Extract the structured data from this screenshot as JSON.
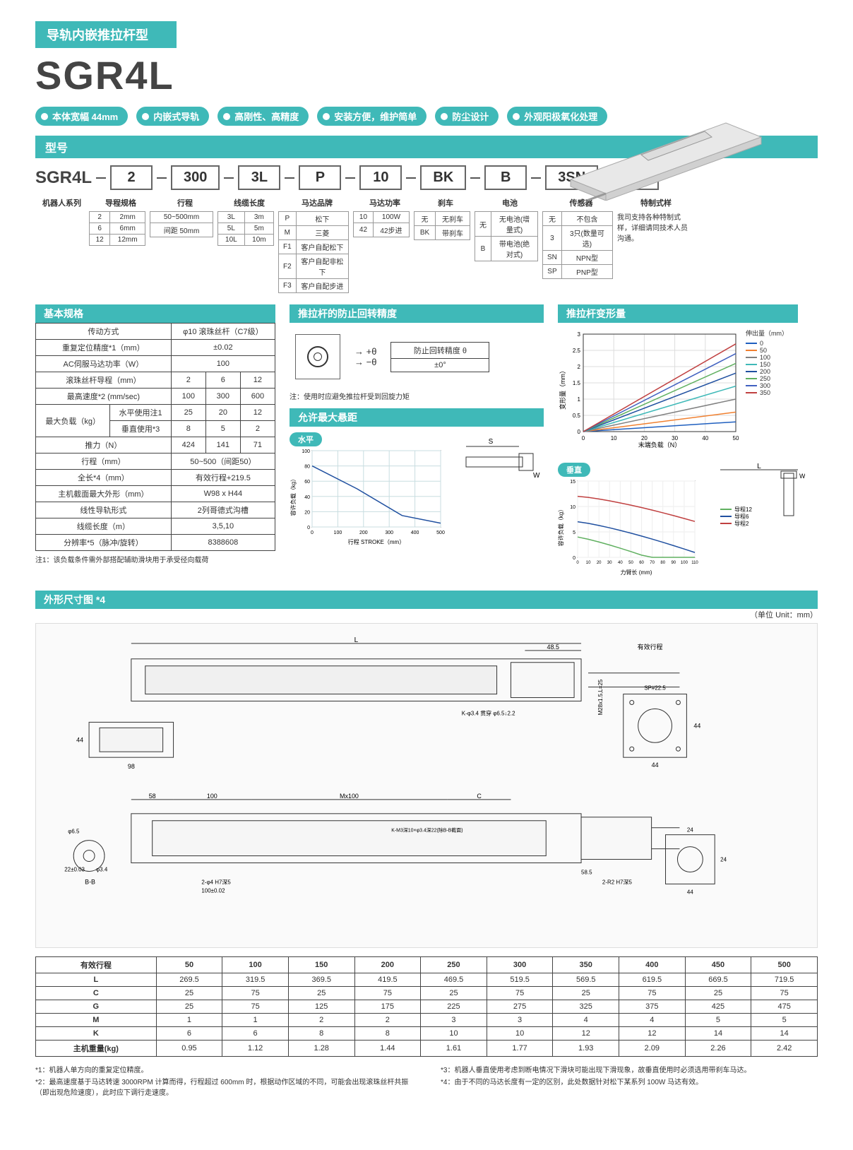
{
  "header": {
    "title": "导轨内嵌推拉杆型",
    "model": "SGR4L",
    "pills": [
      "本体宽幅 44mm",
      "内嵌式导轨",
      "高刚性、高精度",
      "安装方便，维护简单",
      "防尘设计",
      "外观阳极氧化处理"
    ]
  },
  "modelSelector": {
    "header": "型号",
    "lead": "SGR4L",
    "boxes": [
      "2",
      "300",
      "3L",
      "P",
      "10",
      "BK",
      "B",
      "3SN",
      ""
    ],
    "labels": [
      "机器人系列",
      "导程规格",
      "行程",
      "线缆长度",
      "马达品牌",
      "马达功率",
      "刹车",
      "电池",
      "传感器",
      "特制式样"
    ],
    "labelWidths": [
      75,
      80,
      90,
      80,
      100,
      80,
      80,
      90,
      100,
      100
    ],
    "options": {
      "lead": [
        [
          "2",
          "2mm"
        ],
        [
          "6",
          "6mm"
        ],
        [
          "12",
          "12mm"
        ]
      ],
      "stroke": [
        [
          "50~500mm"
        ],
        [
          "间距 50mm"
        ]
      ],
      "cable": [
        [
          "3L",
          "3m"
        ],
        [
          "5L",
          "5m"
        ],
        [
          "10L",
          "10m"
        ]
      ],
      "brand": [
        [
          "P",
          "松下"
        ],
        [
          "M",
          "三菱"
        ],
        [
          "F1",
          "客户自配松下"
        ],
        [
          "F2",
          "客户自配非松下"
        ],
        [
          "F3",
          "客户自配步进"
        ]
      ],
      "power": [
        [
          "10",
          "100W"
        ],
        [
          "42",
          "42步进"
        ]
      ],
      "brake": [
        [
          "无",
          "无刹车"
        ],
        [
          "BK",
          "带刹车"
        ]
      ],
      "battery": [
        [
          "无",
          "无电池(增量式)"
        ],
        [
          "B",
          "带电池(绝对式)"
        ]
      ],
      "sensor": [
        [
          "无",
          "不包含"
        ],
        [
          "3",
          "3只(数量可选)"
        ],
        [
          "SN",
          "NPN型"
        ],
        [
          "SP",
          "PNP型"
        ]
      ],
      "custom": "我司支持各种特制式样，详细请同技术人员沟通。"
    }
  },
  "specs": {
    "header": "基本规格",
    "rows": [
      {
        "label": "传动方式",
        "val": "φ10 滚珠丝杆（C7级）",
        "span": 3
      },
      {
        "label": "重复定位精度*1（mm）",
        "val": "±0.02",
        "span": 3
      },
      {
        "label": "AC伺服马达功率（W）",
        "val": "100",
        "span": 3
      },
      {
        "label": "滚珠丝杆导程（mm）",
        "vals": [
          "2",
          "6",
          "12"
        ]
      },
      {
        "label": "最高速度*2 (mm/sec)",
        "vals": [
          "100",
          "300",
          "600"
        ]
      },
      {
        "label": "最大负载（kg）",
        "sub1": "水平使用注1",
        "vals1": [
          "25",
          "20",
          "12"
        ],
        "sub2": "垂直使用*3",
        "vals2": [
          "8",
          "5",
          "2"
        ]
      },
      {
        "label": "推力（N）",
        "vals": [
          "424",
          "141",
          "71"
        ]
      },
      {
        "label": "行程（mm）",
        "val": "50~500（间距50）",
        "span": 3
      },
      {
        "label": "全长*4（mm）",
        "val": "有效行程+219.5",
        "span": 3
      },
      {
        "label": "主机截面最大外形（mm）",
        "val": "W98 x H44",
        "span": 3
      },
      {
        "label": "线性导轨形式",
        "val": "2列哥德式沟槽",
        "span": 3
      },
      {
        "label": "线缆长度（m）",
        "val": "3,5,10",
        "span": 3
      },
      {
        "label": "分辨率*5（脉冲/旋转）",
        "val": "8388608",
        "span": 3
      }
    ],
    "note1": "注1：该负载条件需外部搭配辅助滑块用于承受径向载荷"
  },
  "rotation": {
    "header": "推拉杆的防止回转精度",
    "plusTheta": "+θ",
    "minusTheta": "−θ",
    "label1": "防止回转精度 θ",
    "value": "±0°",
    "note": "注：使用时应避免推拉杆受到回旋力矩"
  },
  "deform": {
    "header": "推拉杆变形量",
    "ylabel": "变形量（mm）",
    "xlabel": "末端负载（N）",
    "legendTitle": "伸出量（mm）",
    "ylim": [
      0,
      3
    ],
    "ytick": 0.5,
    "xlim": [
      0,
      50
    ],
    "xtick": 10,
    "series": [
      {
        "name": "0",
        "color": "#1f5fbf",
        "values": [
          [
            0,
            0
          ],
          [
            50,
            0.3
          ]
        ]
      },
      {
        "name": "50",
        "color": "#f08030",
        "values": [
          [
            0,
            0
          ],
          [
            50,
            0.6
          ]
        ]
      },
      {
        "name": "100",
        "color": "#808080",
        "values": [
          [
            0,
            0
          ],
          [
            50,
            1.0
          ]
        ]
      },
      {
        "name": "150",
        "color": "#3fb9b8",
        "values": [
          [
            0,
            0
          ],
          [
            50,
            1.4
          ]
        ]
      },
      {
        "name": "200",
        "color": "#2050a0",
        "values": [
          [
            0,
            0
          ],
          [
            50,
            1.8
          ]
        ]
      },
      {
        "name": "250",
        "color": "#60b060",
        "values": [
          [
            0,
            0
          ],
          [
            50,
            2.1
          ]
        ]
      },
      {
        "name": "300",
        "color": "#4060c0",
        "values": [
          [
            0,
            0
          ],
          [
            50,
            2.4
          ]
        ]
      },
      {
        "name": "350",
        "color": "#c04040",
        "values": [
          [
            0,
            0
          ],
          [
            50,
            2.7
          ]
        ]
      }
    ]
  },
  "overhang": {
    "header": "允许最大悬距",
    "horiz": {
      "title": "水平",
      "ylabel": "容许负载（kg）",
      "xlabel": "行程 STROKE（mm）",
      "xlim": [
        0,
        500
      ],
      "ylim": [
        0,
        100
      ]
    },
    "vert": {
      "title": "垂直",
      "ylabel": "容许负载（kg）",
      "xlabel": "力臂长 (mm)",
      "xlim": [
        0,
        110
      ],
      "ylim": [
        0,
        15
      ],
      "series": [
        {
          "name": "导程2",
          "color": "#c04040"
        },
        {
          "name": "导程6",
          "color": "#2050a0"
        },
        {
          "name": "导程12",
          "color": "#60b060"
        }
      ]
    }
  },
  "dimensions": {
    "header": "外形尺寸图 *4",
    "unitNote": "（单位 Unit：mm）",
    "table": {
      "headers": [
        "有效行程",
        "50",
        "100",
        "150",
        "200",
        "250",
        "300",
        "350",
        "400",
        "450",
        "500"
      ],
      "rows": [
        [
          "L",
          "269.5",
          "319.5",
          "369.5",
          "419.5",
          "469.5",
          "519.5",
          "569.5",
          "619.5",
          "669.5",
          "719.5"
        ],
        [
          "C",
          "25",
          "75",
          "25",
          "75",
          "25",
          "75",
          "25",
          "75",
          "25",
          "75"
        ],
        [
          "G",
          "25",
          "75",
          "125",
          "175",
          "225",
          "275",
          "325",
          "375",
          "425",
          "475"
        ],
        [
          "M",
          "1",
          "1",
          "2",
          "2",
          "3",
          "3",
          "4",
          "4",
          "5",
          "5"
        ],
        [
          "K",
          "6",
          "6",
          "8",
          "8",
          "10",
          "10",
          "12",
          "12",
          "14",
          "14"
        ],
        [
          "主机重量(kg)",
          "0.95",
          "1.12",
          "1.28",
          "1.44",
          "1.61",
          "1.77",
          "1.93",
          "2.09",
          "2.26",
          "2.42"
        ]
      ]
    },
    "drawingLabels": [
      "L",
      "48.5",
      "有效行程",
      "K-φ3.4 贯穿 φ6.5 ↓ 2.2",
      "44",
      "98",
      "SP#22.5",
      "44",
      "58",
      "100",
      "Mx100",
      "C",
      "φ6.5",
      "22±0.03",
      "φ3.4",
      "B-B",
      "2-φ4 H7深5",
      "100±0.02",
      "B",
      "B",
      "K-M3深10×φ3.4深22(除B-B截面)",
      "2-R2 H7深5",
      "24",
      "24",
      "58.5",
      "M28x1.5,L=25",
      "44",
      "44"
    ]
  },
  "footnotes": {
    "left": [
      "*1：机器人单方向的重复定位精度。",
      "*2：最高速度基于马达转速 3000RPM 计算而得，行程超过 600mm 时，根据动作区域的不同，可能会出现滚珠丝杆共振（即出现危险速度），此时应下调行走速度。"
    ],
    "right": [
      "*3：机器人垂直使用考虑到断电情况下滑块可能出现下滑现象，故垂直使用时必须选用带刹车马达。",
      "*4：由于不同的马达长度有一定的区别，此处数据针对松下某系列 100W 马达有效。"
    ]
  }
}
